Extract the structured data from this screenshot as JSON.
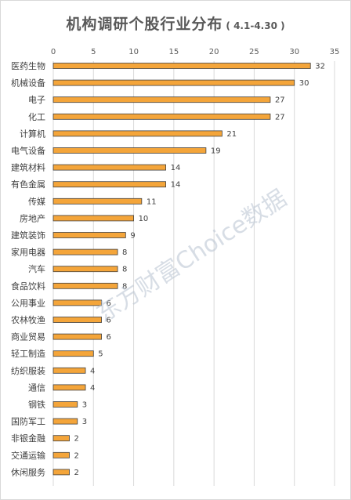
{
  "chart_data": {
    "type": "bar",
    "orientation": "horizontal",
    "title": "机构调研个股行业分布",
    "subtitle": "( 4.1-4.30 )",
    "watermark": "东方财富Choice数据",
    "xlim": [
      0,
      35
    ],
    "x_ticks": [
      "0",
      "5",
      "10",
      "15",
      "20",
      "25",
      "30",
      "35"
    ],
    "grid": true,
    "bar_color": "#f4a53a",
    "bar_border": "#404040",
    "categories": [
      "医药生物",
      "机械设备",
      "电子",
      "化工",
      "计算机",
      "电气设备",
      "建筑材料",
      "有色金属",
      "传媒",
      "房地产",
      "建筑装饰",
      "家用电器",
      "汽车",
      "食品饮料",
      "公用事业",
      "农林牧渔",
      "商业贸易",
      "轻工制造",
      "纺织服装",
      "通信",
      "钢铁",
      "国防军工",
      "非银金融",
      "交通运输",
      "休闲服务"
    ],
    "values": [
      32,
      30,
      27,
      27,
      21,
      19,
      14,
      14,
      11,
      10,
      9,
      8,
      8,
      8,
      6,
      6,
      6,
      5,
      4,
      4,
      3,
      3,
      2,
      2,
      2
    ]
  }
}
